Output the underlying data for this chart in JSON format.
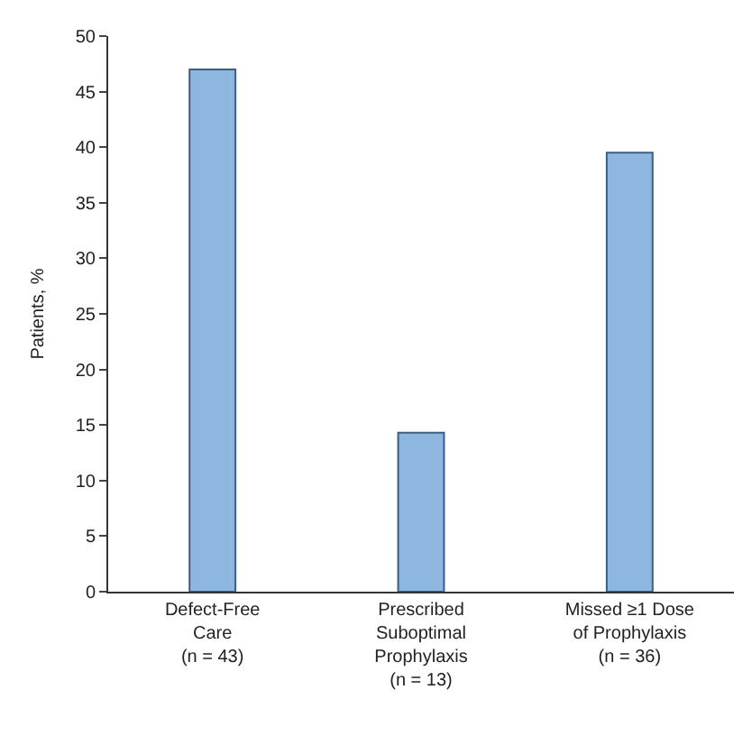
{
  "chart_data": {
    "type": "bar",
    "ylabel": "Patients, %",
    "categories": [
      "Defect-Free\nCare\n(n = 43)",
      "Prescribed\nSuboptimal\nProphylaxis\n(n = 13)",
      "Missed ≥1 Dose\nof Prophylaxis\n(n = 36)"
    ],
    "values": [
      47,
      14.3,
      39.5
    ],
    "color": "#8db7df",
    "ylim": [
      0,
      50
    ],
    "yticks": [
      0,
      5,
      10,
      15,
      20,
      25,
      30,
      35,
      40,
      45,
      50
    ]
  }
}
